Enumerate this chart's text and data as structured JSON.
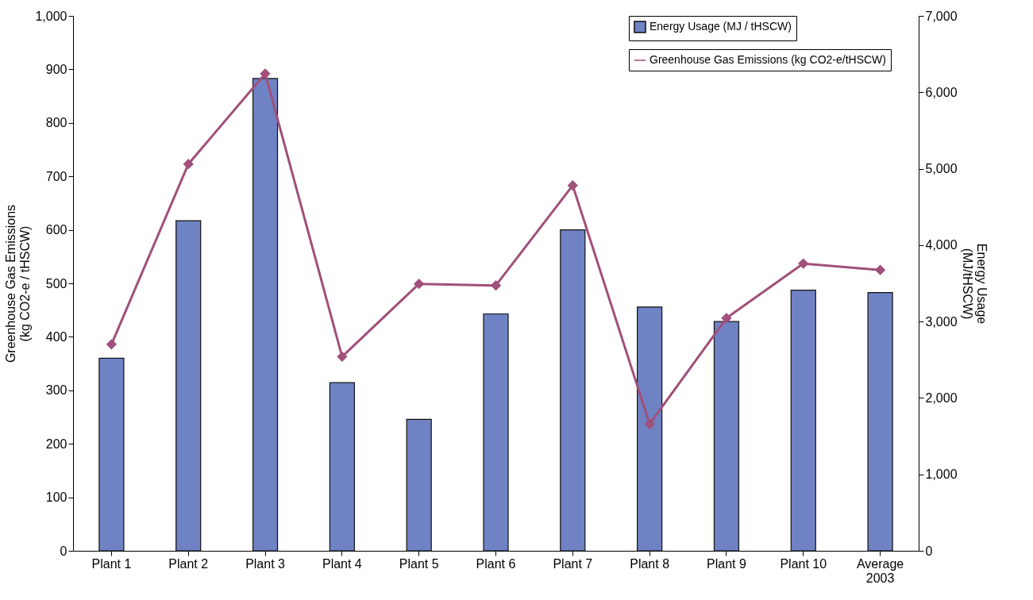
{
  "chart_data": {
    "type": "bar",
    "categories": [
      "Plant 1",
      "Plant 2",
      "Plant 3",
      "Plant 4",
      "Plant 5",
      "Plant 6",
      "Plant 7",
      "Plant 8",
      "Plant 9",
      "Plant 10",
      "Average 2003"
    ],
    "ylabel": "Greenhouse Gas Emissions (kg CO2-e / tHSCW)",
    "y2label": "Energy Usage (MJ/tHSCW)",
    "ylim": [
      0,
      1000
    ],
    "yticks": [
      0,
      100,
      200,
      300,
      400,
      500,
      600,
      700,
      800,
      900,
      {
        "value": 1000,
        "label": "1,000"
      }
    ],
    "y2lim": [
      0,
      7000
    ],
    "y2ticks": [
      0,
      {
        "value": 1000,
        "label": "1,000"
      },
      {
        "value": 2000,
        "label": "2,000"
      },
      {
        "value": 3000,
        "label": "3,000"
      },
      {
        "value": 4000,
        "label": "4,000"
      },
      {
        "value": 5000,
        "label": "5,000"
      },
      {
        "value": 6000,
        "label": "6,000"
      },
      {
        "value": 7000,
        "label": "7,000"
      }
    ],
    "grid": false,
    "legend": "top right",
    "series": [
      {
        "name": "Energy Usage (MJ / tHSCW)",
        "axis": "y2",
        "color": "#6f82c4",
        "values": [
          2520,
          4320,
          6180,
          2200,
          1720,
          3100,
          4200,
          3190,
          3000,
          3410,
          3380
        ]
      },
      {
        "name": "Greenhouse Gas Emissions (kg CO2-e/tHSCW)",
        "type": "line",
        "axis": "y",
        "color": "#a0507a",
        "marker": "diamond",
        "line_style": "solid",
        "values": [
          386,
          723,
          892,
          363,
          499,
          496,
          683,
          237,
          435,
          537,
          525
        ]
      }
    ]
  }
}
